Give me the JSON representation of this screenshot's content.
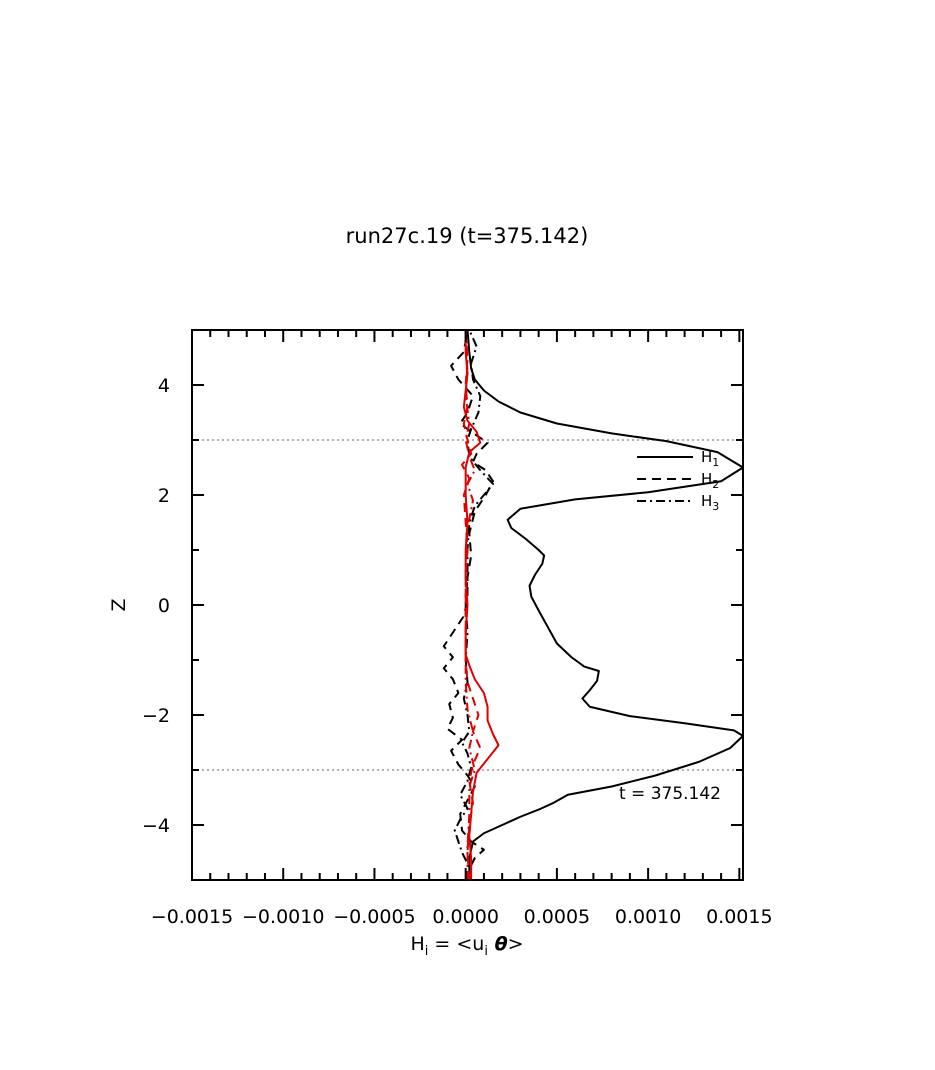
{
  "chart_data": {
    "type": "line",
    "title": "run27c.19 (t=375.142)",
    "xlabel": {
      "base": "H",
      "sub": "i",
      "eq": " = <u",
      "sub2": "i",
      "theta": " θ",
      "close": ">"
    },
    "ylabel": "Z",
    "xlim": [
      -0.0015,
      0.00152
    ],
    "ylim": [
      -5,
      5
    ],
    "x_ticks": [
      -0.0015,
      -0.001,
      -0.0005,
      0.0,
      0.0005,
      0.001,
      0.0015
    ],
    "x_tick_labels": [
      "−0.0015",
      "−0.0010",
      "−0.0005",
      "0.0000",
      "0.0005",
      "0.0010",
      "0.0015"
    ],
    "y_ticks": [
      -4,
      -2,
      0,
      2,
      4
    ],
    "y_tick_labels": [
      "−4",
      "−2",
      "0",
      "2",
      "4"
    ],
    "hlines": [
      3,
      -3
    ],
    "annotation": "t = 375.142",
    "legend": {
      "position": "right",
      "entries": [
        {
          "base": "H",
          "sub": "1",
          "style": "solid"
        },
        {
          "base": "H",
          "sub": "2",
          "style": "dashed"
        },
        {
          "base": "H",
          "sub": "3",
          "style": "dashdot"
        }
      ]
    },
    "series": [
      {
        "style": "solid",
        "color": "#000000",
        "points": [
          [
            2e-05,
            -5.0
          ],
          [
            2e-05,
            -4.6
          ],
          [
            4e-05,
            -4.3
          ],
          [
            0.0001,
            -4.15
          ],
          [
            0.0002,
            -4.0
          ],
          [
            0.0003,
            -3.85
          ],
          [
            0.0004,
            -3.72
          ],
          [
            0.00048,
            -3.6
          ],
          [
            0.00056,
            -3.45
          ],
          [
            0.0008,
            -3.3
          ],
          [
            0.00104,
            -3.1
          ],
          [
            0.00128,
            -2.85
          ],
          [
            0.00145,
            -2.6
          ],
          [
            0.00152,
            -2.38
          ],
          [
            0.00147,
            -2.28
          ],
          [
            0.0012,
            -2.15
          ],
          [
            0.0009,
            -2.02
          ],
          [
            0.00068,
            -1.85
          ],
          [
            0.00064,
            -1.7
          ],
          [
            0.00068,
            -1.55
          ],
          [
            0.00072,
            -1.38
          ],
          [
            0.00073,
            -1.2
          ],
          [
            0.00065,
            -1.12
          ],
          [
            0.00058,
            -0.95
          ],
          [
            0.0005,
            -0.7
          ],
          [
            0.00045,
            -0.4
          ],
          [
            0.0004,
            -0.1
          ],
          [
            0.00036,
            0.15
          ],
          [
            0.00035,
            0.35
          ],
          [
            0.00038,
            0.55
          ],
          [
            0.00042,
            0.75
          ],
          [
            0.00043,
            0.9
          ],
          [
            0.0004,
            1.0
          ],
          [
            0.00033,
            1.2
          ],
          [
            0.00025,
            1.4
          ],
          [
            0.00023,
            1.55
          ],
          [
            0.0003,
            1.75
          ],
          [
            0.0006,
            1.92
          ],
          [
            0.001,
            2.05
          ],
          [
            0.0014,
            2.25
          ],
          [
            0.00152,
            2.5
          ],
          [
            0.00138,
            2.78
          ],
          [
            0.0011,
            2.98
          ],
          [
            0.0008,
            3.12
          ],
          [
            0.0005,
            3.3
          ],
          [
            0.0003,
            3.5
          ],
          [
            0.00018,
            3.7
          ],
          [
            0.0001,
            3.9
          ],
          [
            5e-05,
            4.1
          ],
          [
            3e-05,
            4.3
          ],
          [
            2e-05,
            4.6
          ],
          [
            1e-05,
            5.0
          ]
        ]
      },
      {
        "style": "dashed",
        "color": "#000000",
        "points": [
          [
            1e-05,
            -5.0
          ],
          [
            2e-05,
            -4.8
          ],
          [
            5e-05,
            -4.6
          ],
          [
            0.0001,
            -4.45
          ],
          [
            3e-05,
            -4.3
          ],
          [
            -2e-05,
            -4.1
          ],
          [
            -3e-05,
            -3.8
          ],
          [
            1e-05,
            -3.55
          ],
          [
            5e-05,
            -3.3
          ],
          [
            1e-05,
            -3.1
          ],
          [
            -4e-05,
            -2.9
          ],
          [
            -8e-05,
            -2.65
          ],
          [
            -2e-05,
            -2.45
          ],
          [
            -0.0001,
            -2.25
          ],
          [
            -7e-05,
            -2.05
          ],
          [
            -9e-05,
            -1.8
          ],
          [
            -4e-05,
            -1.6
          ],
          [
            -7e-05,
            -1.35
          ],
          [
            -0.00012,
            -1.15
          ],
          [
            -7e-05,
            -0.95
          ],
          [
            -0.00012,
            -0.75
          ],
          [
            -7e-05,
            -0.5
          ],
          [
            -1e-05,
            -0.2
          ],
          [
            1e-05,
            0.1
          ],
          [
            1e-05,
            0.5
          ],
          [
            3e-05,
            0.9
          ],
          [
            2e-05,
            1.3
          ],
          [
            5e-05,
            1.7
          ],
          [
            0.00011,
            2.0
          ],
          [
            0.00015,
            2.25
          ],
          [
            0.00011,
            2.45
          ],
          [
            4e-05,
            2.6
          ],
          [
            6e-05,
            2.75
          ],
          [
            0.00012,
            2.95
          ],
          [
            3e-05,
            3.15
          ],
          [
            -3e-05,
            3.3
          ],
          [
            1e-05,
            3.5
          ],
          [
            4e-05,
            3.8
          ],
          [
            -4e-05,
            4.1
          ],
          [
            -8e-05,
            4.35
          ],
          [
            -1e-05,
            4.6
          ],
          [
            1e-05,
            5.0
          ]
        ]
      },
      {
        "style": "dashdot",
        "color": "#000000",
        "points": [
          [
            1e-05,
            -5.0
          ],
          [
            1e-05,
            -4.7
          ],
          [
            -2e-05,
            -4.5
          ],
          [
            -4e-05,
            -4.3
          ],
          [
            -6e-05,
            -4.1
          ],
          [
            -3e-05,
            -3.9
          ],
          [
            1e-05,
            -3.7
          ],
          [
            -3e-05,
            -3.45
          ],
          [
            1e-05,
            -3.2
          ],
          [
            3e-05,
            -2.95
          ],
          [
            1e-05,
            -2.7
          ],
          [
            -2e-05,
            -2.5
          ],
          [
            2e-05,
            -2.3
          ],
          [
            1e-05,
            -2.0
          ],
          [
            -1e-05,
            -1.7
          ],
          [
            1e-05,
            -1.4
          ],
          [
            0.0,
            -1.0
          ],
          [
            1e-05,
            -0.5
          ],
          [
            0.0,
            0.0
          ],
          [
            1e-05,
            0.5
          ],
          [
            1e-05,
            1.0
          ],
          [
            2e-05,
            1.5
          ],
          [
            5e-05,
            1.8
          ],
          [
            0.0001,
            2.0
          ],
          [
            0.00015,
            2.2
          ],
          [
            8e-05,
            2.45
          ],
          [
            2e-05,
            2.7
          ],
          [
            1e-05,
            3.0
          ],
          [
            3e-05,
            3.2
          ],
          [
            7e-05,
            3.5
          ],
          [
            8e-05,
            3.8
          ],
          [
            4e-05,
            4.1
          ],
          [
            3e-05,
            4.4
          ],
          [
            6e-05,
            4.7
          ],
          [
            2e-05,
            5.0
          ]
        ]
      },
      {
        "style": "solid",
        "color": "#e00000",
        "points": [
          [
            3e-05,
            -5.0
          ],
          [
            3e-05,
            -4.6
          ],
          [
            2e-05,
            -4.2
          ],
          [
            3e-05,
            -3.8
          ],
          [
            4e-05,
            -3.4
          ],
          [
            6e-05,
            -3.05
          ],
          [
            0.00012,
            -2.8
          ],
          [
            0.00018,
            -2.55
          ],
          [
            0.00015,
            -2.35
          ],
          [
            0.00012,
            -2.1
          ],
          [
            0.00012,
            -1.85
          ],
          [
            0.0001,
            -1.6
          ],
          [
            5e-05,
            -1.35
          ],
          [
            2e-05,
            -1.1
          ],
          [
            0.0,
            -0.9
          ],
          [
            0.0,
            -0.5
          ],
          [
            1e-05,
            0.0
          ],
          [
            0.0,
            0.5
          ],
          [
            0.0,
            1.0
          ],
          [
            1e-05,
            1.5
          ],
          [
            0.0,
            2.0
          ],
          [
            0.0,
            2.5
          ],
          [
            2e-05,
            2.78
          ],
          [
            8e-05,
            2.95
          ],
          [
            6e-05,
            3.15
          ],
          [
            1e-05,
            3.35
          ],
          [
            -1e-05,
            3.6
          ],
          [
            0.0,
            3.9
          ],
          [
            1e-05,
            4.2
          ],
          [
            0.0,
            4.6
          ],
          [
            0.0,
            5.0
          ]
        ]
      },
      {
        "style": "dashed",
        "color": "#e00000",
        "points": [
          [
            2e-05,
            -5.0
          ],
          [
            1e-05,
            -4.5
          ],
          [
            2e-05,
            -4.0
          ],
          [
            4e-05,
            -3.6
          ],
          [
            2e-05,
            -3.2
          ],
          [
            4e-05,
            -2.9
          ],
          [
            8e-05,
            -2.6
          ],
          [
            4e-05,
            -2.3
          ],
          [
            7e-05,
            -2.0
          ],
          [
            4e-05,
            -1.7
          ],
          [
            1e-05,
            -1.4
          ],
          [
            0.0,
            -1.0
          ],
          [
            0.0,
            -0.5
          ],
          [
            0.0,
            0.0
          ],
          [
            0.0,
            0.5
          ],
          [
            1e-05,
            1.0
          ],
          [
            0.0,
            1.5
          ],
          [
            -1e-05,
            2.0
          ],
          [
            2e-05,
            2.3
          ],
          [
            -2e-05,
            2.55
          ],
          [
            3e-05,
            2.75
          ],
          [
            1e-05,
            3.0
          ],
          [
            -1e-05,
            3.3
          ],
          [
            1e-05,
            3.6
          ],
          [
            0.0,
            4.0
          ],
          [
            1e-05,
            4.5
          ],
          [
            0.0,
            5.0
          ]
        ]
      },
      {
        "style": "dashdot",
        "color": "#e00000",
        "points": [
          [
            1e-05,
            -5.0
          ],
          [
            1e-05,
            -4.4
          ],
          [
            2e-05,
            -3.8
          ],
          [
            2e-05,
            -3.3
          ],
          [
            5e-05,
            -3.0
          ],
          [
            2e-05,
            -2.6
          ],
          [
            4e-05,
            -2.3
          ],
          [
            1e-05,
            -1.9
          ],
          [
            0.0,
            -1.4
          ],
          [
            0.0,
            -0.8
          ],
          [
            0.0,
            0.0
          ],
          [
            0.0,
            0.8
          ],
          [
            1e-05,
            1.4
          ],
          [
            4e-05,
            1.9
          ],
          [
            1e-05,
            2.2
          ],
          [
            5e-05,
            2.45
          ],
          [
            2e-05,
            2.7
          ],
          [
            0.0,
            3.0
          ],
          [
            2e-05,
            3.3
          ],
          [
            0.0,
            3.8
          ],
          [
            1e-05,
            4.4
          ],
          [
            0.0,
            5.0
          ]
        ]
      }
    ]
  }
}
